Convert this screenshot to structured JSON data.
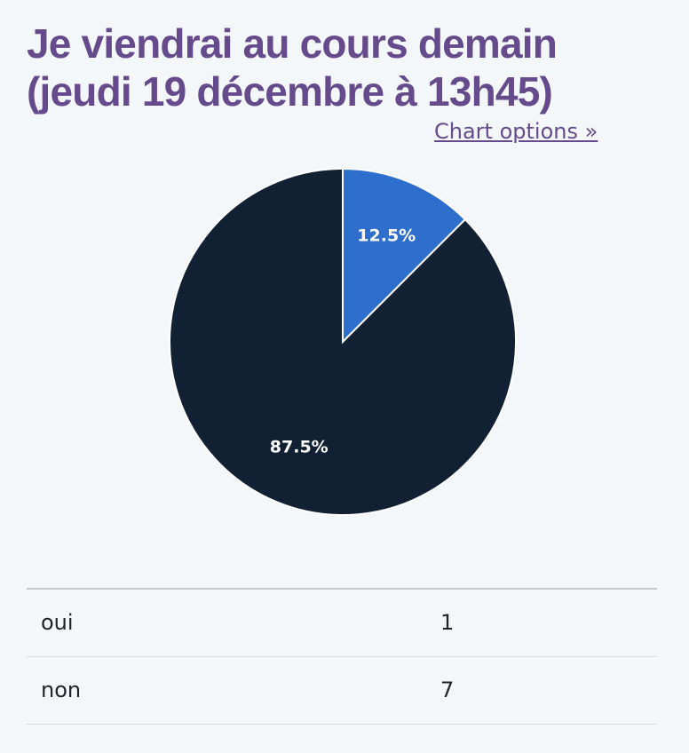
{
  "title": {
    "line1": "Je viendrai au cours demain",
    "line2": "(jeudi 19 décembre à 13h45)"
  },
  "chart_options_label": "Chart options »",
  "colors": {
    "title": "#664b8c",
    "oui": "#2e6fce",
    "non": "#112033",
    "slice_label": "#ffffff",
    "background": "#f4f7fa"
  },
  "chart_data": {
    "type": "pie",
    "categories": [
      "oui",
      "non"
    ],
    "values": [
      1,
      7
    ],
    "slice_labels": [
      "12.5%",
      "87.5%"
    ],
    "legend": "none"
  },
  "results": [
    {
      "label": "oui",
      "count": "1"
    },
    {
      "label": "non",
      "count": "7"
    }
  ]
}
